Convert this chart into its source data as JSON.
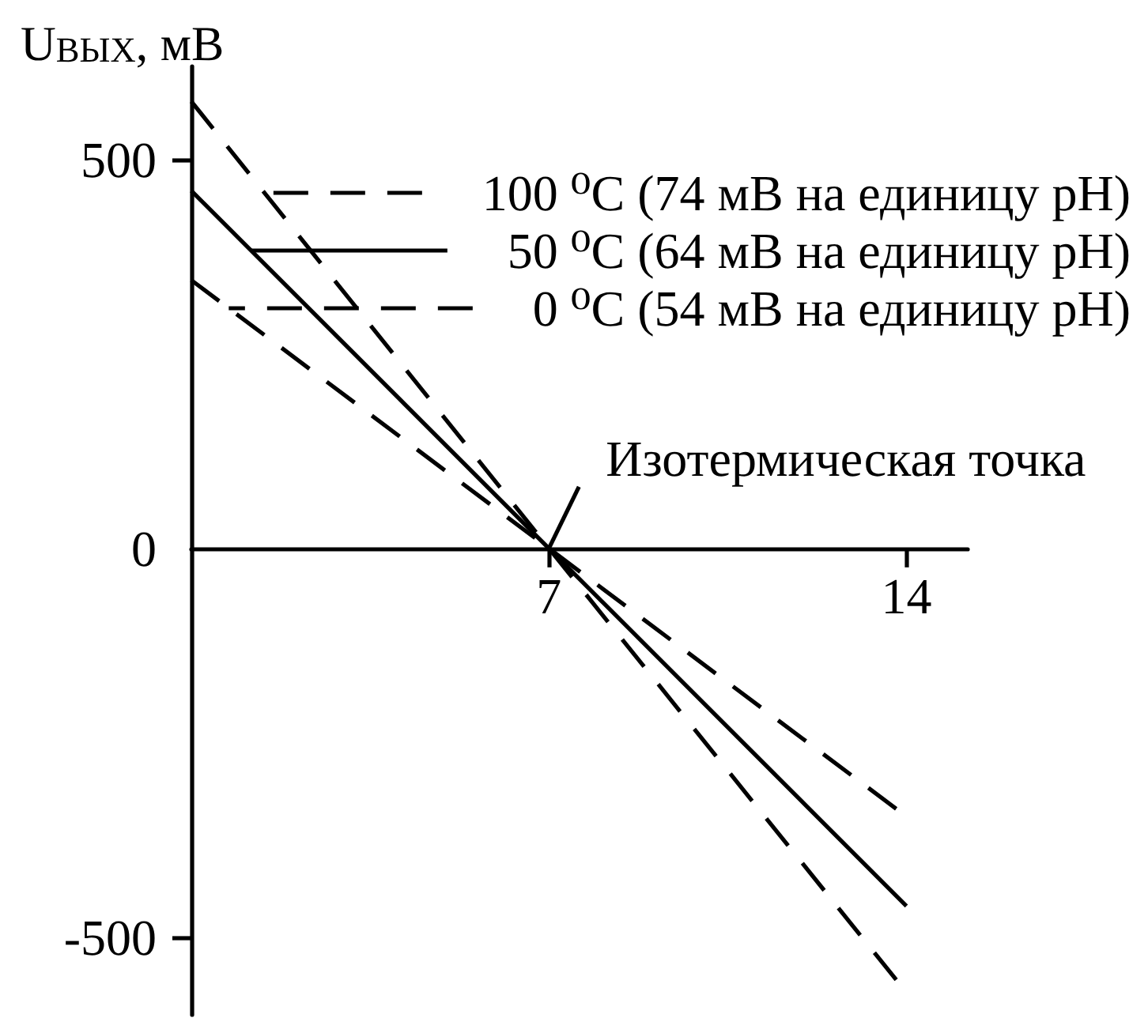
{
  "chart_data": {
    "type": "line",
    "ylabel": "U$_{ВЫХ}$, мВ",
    "series": [
      {
        "name": "100 ⁰C (74 мВ на единицу pH)",
        "color": "#000000",
        "line_style": "dashed",
        "x": [
          0,
          7,
          13.8
        ],
        "values": [
          575,
          0,
          -555
        ]
      },
      {
        "name": "50 ⁰C (64 мВ на единицу pH)",
        "color": "#000000",
        "line_style": "solid",
        "x": [
          0,
          7,
          14
        ],
        "values": [
          460,
          0,
          -460
        ]
      },
      {
        "name": "0 ⁰C (54 мВ на единицу pH)",
        "color": "#000000",
        "line_style": "dashed",
        "x": [
          0,
          7,
          13.8
        ],
        "values": [
          345,
          0,
          -335
        ]
      }
    ],
    "xlim": [
      0,
      15.2
    ],
    "xticks": [
      7,
      14
    ],
    "ylim": [
      -600,
      620
    ],
    "yticks": [
      -500,
      0,
      500
    ],
    "annotations": [
      {
        "text": "Изотермическая точка",
        "x": 7,
        "y": 0
      }
    ],
    "grid": false,
    "legend": "top right",
    "marker": "none"
  }
}
